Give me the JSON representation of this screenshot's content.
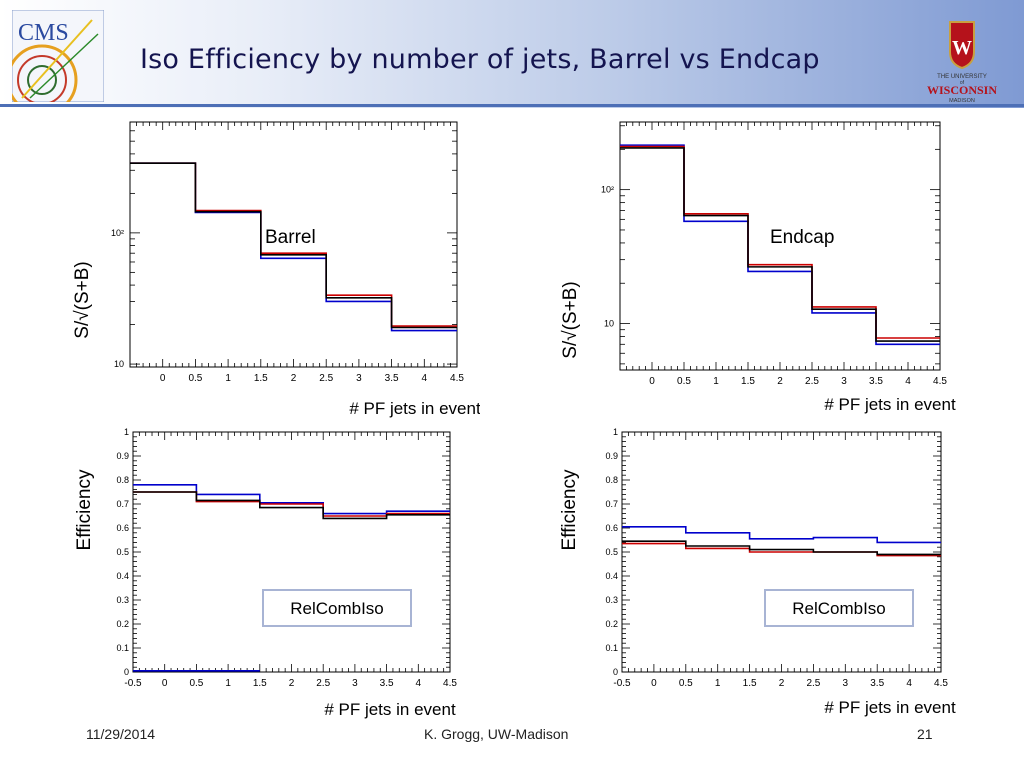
{
  "slide": {
    "title": "Iso Efficiency by number of jets, Barrel vs Endcap",
    "footer_date": "11/29/2014",
    "footer_author": "K. Grogg, UW-Madison",
    "page_number": "21",
    "logo_left_text": "CMS",
    "logo_right_text": [
      "THE UNIVERSITY",
      "of",
      "WISCONSIN",
      "MADISON"
    ]
  },
  "colors": {
    "black_series": "#000000",
    "red_series": "#cc0000",
    "blue_series": "#0000cc",
    "legend_box_border": "#a8b4d4"
  },
  "chart_data": [
    {
      "type": "step",
      "ylabel": "S/√(S+B)",
      "xlabel": "# PF jets in event",
      "annotation": "Barrel",
      "yscale": "log",
      "ylim": [
        9.5,
        700
      ],
      "xlim": [
        -0.5,
        4.5
      ],
      "xticks": [
        "0",
        "0.5",
        "1",
        "1.5",
        "2",
        "2.5",
        "3",
        "3.5",
        "4",
        "4.5"
      ],
      "ytick_labels": [
        {
          "value": 10,
          "label": "10"
        },
        {
          "value": 100,
          "label": "10²"
        }
      ],
      "bin_edges": [
        -0.5,
        0.5,
        1.5,
        2.5,
        3.5,
        4.5
      ],
      "series": [
        {
          "color": "black_series",
          "values": [
            340,
            145,
            68,
            32,
            19
          ]
        },
        {
          "color": "red_series",
          "values": [
            340,
            148,
            70,
            33.5,
            19.5
          ]
        },
        {
          "color": "blue_series",
          "values": [
            340,
            143,
            64,
            30,
            18
          ]
        }
      ]
    },
    {
      "type": "step",
      "ylabel": "S/√(S+B)",
      "xlabel": "# PF jets in event",
      "annotation": "Endcap",
      "yscale": "log",
      "ylim": [
        4.5,
        320
      ],
      "xlim": [
        -0.5,
        4.5
      ],
      "xticks": [
        "0",
        "0.5",
        "1",
        "1.5",
        "2",
        "2.5",
        "3",
        "3.5",
        "4",
        "4.5"
      ],
      "ytick_labels": [
        {
          "value": 10,
          "label": "10"
        },
        {
          "value": 100,
          "label": "10²"
        }
      ],
      "bin_edges": [
        -0.5,
        0.5,
        1.5,
        2.5,
        3.5,
        4.5
      ],
      "series": [
        {
          "color": "black_series",
          "values": [
            205,
            64,
            26.5,
            12.8,
            7.4
          ]
        },
        {
          "color": "red_series",
          "values": [
            210,
            66,
            27.5,
            13.3,
            7.8
          ]
        },
        {
          "color": "blue_series",
          "values": [
            215,
            58,
            24.5,
            12,
            7
          ]
        }
      ]
    },
    {
      "type": "step",
      "ylabel": "Efficiency",
      "xlabel": "# PF jets in event",
      "legend_text": "RelCombIso",
      "ylim": [
        0,
        1
      ],
      "xlim": [
        -0.5,
        4.5
      ],
      "xticks": [
        "-0.5",
        "0",
        "0.5",
        "1",
        "1.5",
        "2",
        "2.5",
        "3",
        "3.5",
        "4",
        "4.5"
      ],
      "yticks": [
        "0",
        "0.1",
        "0.2",
        "0.3",
        "0.4",
        "0.5",
        "0.6",
        "0.7",
        "0.8",
        "0.9",
        "1"
      ],
      "bin_edges": [
        -0.5,
        0.5,
        1.5,
        2.5,
        3.5,
        4.5
      ],
      "series": [
        {
          "color": "black_series",
          "values": [
            0.75,
            0.715,
            0.685,
            0.64,
            0.655
          ]
        },
        {
          "color": "red_series",
          "values": [
            0.75,
            0.71,
            0.7,
            0.65,
            0.66
          ]
        },
        {
          "color": "blue_series",
          "values": [
            0.78,
            0.74,
            0.705,
            0.66,
            0.67
          ]
        }
      ],
      "extra_segment": {
        "color": "blue_series",
        "x": [
          -0.5,
          1.5
        ],
        "y": 0.005
      }
    },
    {
      "type": "step",
      "ylabel": "Efficiency",
      "xlabel": "# PF jets in event",
      "legend_text": "RelCombIso",
      "ylim": [
        0,
        1
      ],
      "xlim": [
        -0.5,
        4.5
      ],
      "xticks": [
        "-0.5",
        "0",
        "0.5",
        "1",
        "1.5",
        "2",
        "2.5",
        "3",
        "3.5",
        "4",
        "4.5"
      ],
      "yticks": [
        "0",
        "0.1",
        "0.2",
        "0.3",
        "0.4",
        "0.5",
        "0.6",
        "0.7",
        "0.8",
        "0.9",
        "1"
      ],
      "bin_edges": [
        -0.5,
        0.5,
        1.5,
        2.5,
        3.5,
        4.5
      ],
      "series": [
        {
          "color": "black_series",
          "values": [
            0.545,
            0.525,
            0.51,
            0.5,
            0.49
          ]
        },
        {
          "color": "red_series",
          "values": [
            0.535,
            0.515,
            0.5,
            0.5,
            0.485
          ]
        },
        {
          "color": "blue_series",
          "values": [
            0.605,
            0.58,
            0.555,
            0.56,
            0.54
          ]
        }
      ]
    }
  ]
}
